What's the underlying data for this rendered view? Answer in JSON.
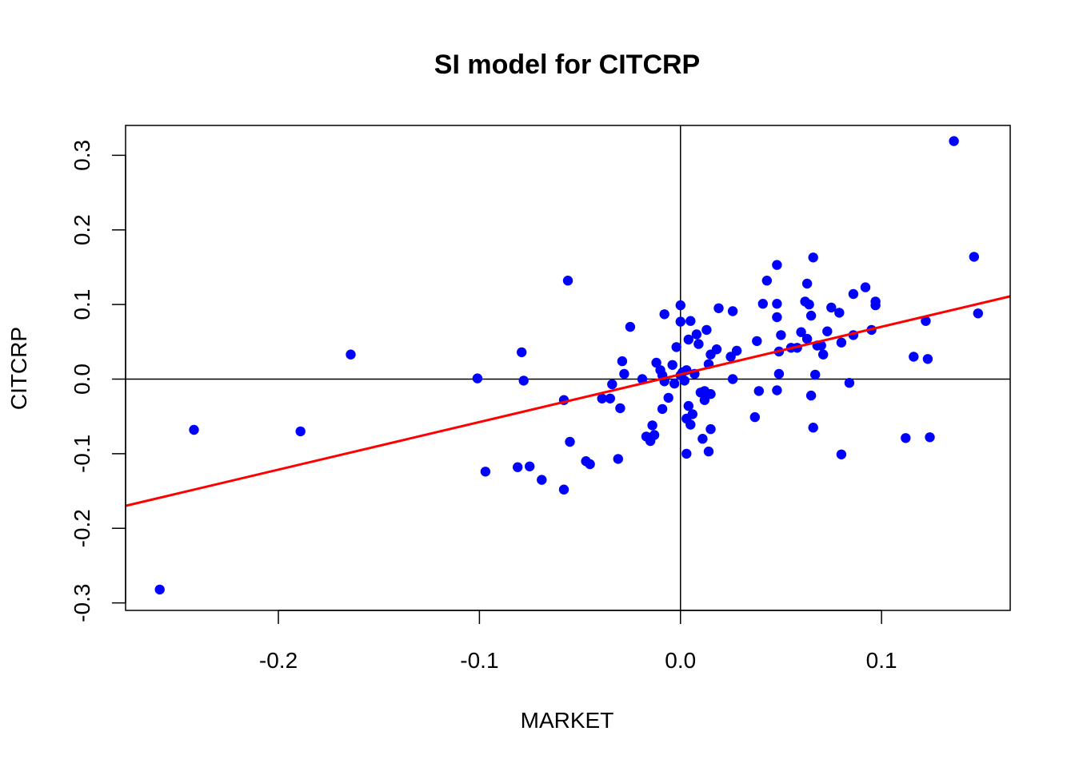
{
  "chart_data": {
    "type": "scatter",
    "title": "SI model for CITCRP",
    "xlabel": "MARKET",
    "ylabel": "CITCRP",
    "xlim": [
      -0.276,
      0.164
    ],
    "ylim": [
      -0.31,
      0.34
    ],
    "x_ticks": [
      -0.2,
      -0.1,
      0.0,
      0.1
    ],
    "x_tick_labels": [
      "-0.2",
      "-0.1",
      "0.0",
      "0.1"
    ],
    "y_ticks": [
      -0.3,
      -0.2,
      -0.1,
      0.0,
      0.1,
      0.2,
      0.3
    ],
    "y_tick_labels": [
      "-0.3",
      "-0.2",
      "-0.1",
      "0.0",
      "0.1",
      "0.2",
      "0.3"
    ],
    "grid": false,
    "reference_lines": {
      "h": 0,
      "v": 0,
      "color": "#000000"
    },
    "point_color": "#0000ff",
    "fit_line": {
      "color": "#ff0000",
      "intercept": 0.0063,
      "slope": 0.6382
    },
    "points": [
      [
        -0.259,
        -0.282
      ],
      [
        -0.242,
        -0.068
      ],
      [
        -0.189,
        -0.07
      ],
      [
        -0.164,
        0.033
      ],
      [
        -0.101,
        0.001
      ],
      [
        -0.097,
        -0.124
      ],
      [
        -0.081,
        -0.118
      ],
      [
        -0.079,
        0.036
      ],
      [
        -0.078,
        -0.002
      ],
      [
        -0.075,
        -0.117
      ],
      [
        -0.069,
        -0.135
      ],
      [
        -0.058,
        -0.148
      ],
      [
        -0.058,
        -0.028
      ],
      [
        -0.056,
        0.132
      ],
      [
        -0.055,
        -0.084
      ],
      [
        -0.047,
        -0.11
      ],
      [
        -0.045,
        -0.114
      ],
      [
        -0.039,
        -0.026
      ],
      [
        -0.035,
        -0.026
      ],
      [
        -0.034,
        -0.007
      ],
      [
        -0.031,
        -0.107
      ],
      [
        -0.03,
        -0.039
      ],
      [
        -0.029,
        0.024
      ],
      [
        -0.028,
        0.007
      ],
      [
        -0.025,
        0.07
      ],
      [
        -0.019,
        0.0
      ],
      [
        -0.017,
        -0.077
      ],
      [
        -0.015,
        -0.083
      ],
      [
        -0.014,
        -0.062
      ],
      [
        -0.013,
        -0.075
      ],
      [
        -0.012,
        0.022
      ],
      [
        -0.01,
        0.012
      ],
      [
        -0.009,
        -0.04
      ],
      [
        -0.009,
        0.005
      ],
      [
        -0.008,
        0.087
      ],
      [
        -0.008,
        -0.003
      ],
      [
        -0.006,
        -0.025
      ],
      [
        -0.004,
        0.019
      ],
      [
        -0.003,
        -0.006
      ],
      [
        -0.002,
        0.043
      ],
      [
        0.0,
        0.099
      ],
      [
        0.0,
        0.005
      ],
      [
        0.0,
        0.077
      ],
      [
        0.001,
        0.009
      ],
      [
        0.002,
        -0.002
      ],
      [
        0.003,
        -0.1
      ],
      [
        0.003,
        0.012
      ],
      [
        0.003,
        -0.053
      ],
      [
        0.004,
        -0.036
      ],
      [
        0.004,
        0.053
      ],
      [
        0.005,
        -0.061
      ],
      [
        0.005,
        0.078
      ],
      [
        0.006,
        -0.047
      ],
      [
        0.007,
        0.007
      ],
      [
        0.008,
        0.06
      ],
      [
        0.009,
        0.047
      ],
      [
        0.01,
        -0.018
      ],
      [
        0.011,
        -0.08
      ],
      [
        0.012,
        -0.028
      ],
      [
        0.012,
        -0.016
      ],
      [
        0.013,
        0.066
      ],
      [
        0.014,
        -0.097
      ],
      [
        0.014,
        0.02
      ],
      [
        0.015,
        -0.067
      ],
      [
        0.015,
        0.033
      ],
      [
        0.015,
        -0.02
      ],
      [
        0.018,
        0.04
      ],
      [
        0.019,
        0.095
      ],
      [
        0.025,
        0.03
      ],
      [
        0.026,
        0.091
      ],
      [
        0.026,
        0.0
      ],
      [
        0.028,
        0.038
      ],
      [
        0.037,
        -0.051
      ],
      [
        0.038,
        0.051
      ],
      [
        0.039,
        -0.016
      ],
      [
        0.041,
        0.101
      ],
      [
        0.043,
        0.132
      ],
      [
        0.048,
        0.153
      ],
      [
        0.048,
        0.101
      ],
      [
        0.048,
        0.083
      ],
      [
        0.048,
        -0.015
      ],
      [
        0.049,
        0.007
      ],
      [
        0.049,
        0.037
      ],
      [
        0.05,
        0.059
      ],
      [
        0.055,
        0.042
      ],
      [
        0.058,
        0.042
      ],
      [
        0.06,
        0.063
      ],
      [
        0.062,
        0.104
      ],
      [
        0.063,
        0.128
      ],
      [
        0.063,
        0.054
      ],
      [
        0.064,
        0.1
      ],
      [
        0.065,
        -0.022
      ],
      [
        0.065,
        0.085
      ],
      [
        0.066,
        -0.065
      ],
      [
        0.066,
        0.163
      ],
      [
        0.067,
        0.006
      ],
      [
        0.068,
        0.045
      ],
      [
        0.07,
        0.045
      ],
      [
        0.071,
        0.033
      ],
      [
        0.073,
        0.064
      ],
      [
        0.075,
        0.096
      ],
      [
        0.079,
        0.089
      ],
      [
        0.08,
        -0.101
      ],
      [
        0.08,
        0.049
      ],
      [
        0.084,
        -0.005
      ],
      [
        0.086,
        0.059
      ],
      [
        0.086,
        0.114
      ],
      [
        0.092,
        0.123
      ],
      [
        0.095,
        0.066
      ],
      [
        0.097,
        0.104
      ],
      [
        0.097,
        0.099
      ],
      [
        0.112,
        -0.079
      ],
      [
        0.116,
        0.03
      ],
      [
        0.122,
        0.078
      ],
      [
        0.123,
        0.027
      ],
      [
        0.124,
        -0.078
      ],
      [
        0.136,
        0.319
      ],
      [
        0.146,
        0.164
      ],
      [
        0.148,
        0.088
      ]
    ]
  }
}
